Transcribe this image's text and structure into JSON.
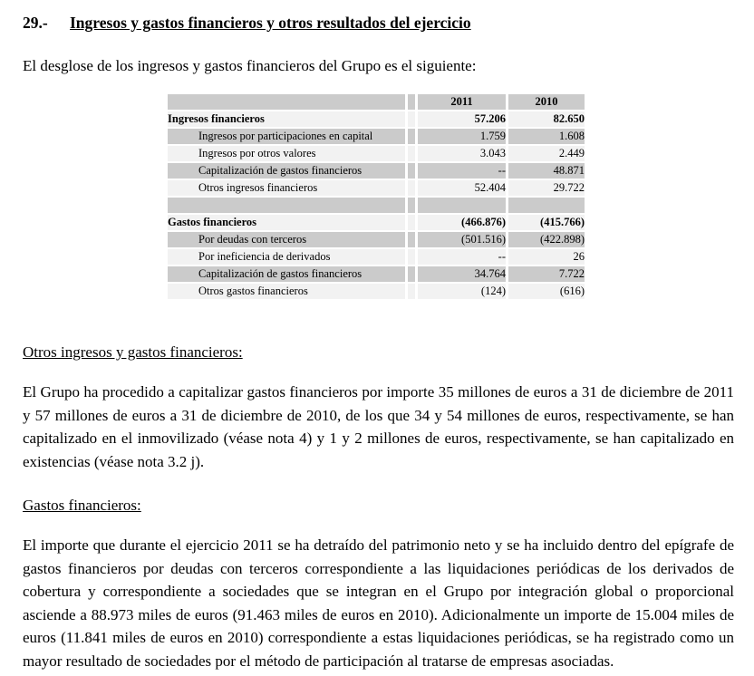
{
  "page": {
    "title_number": "29.-",
    "title": "Ingresos y gastos financieros y otros resultados del ejercicio",
    "intro": "El desglose de los ingresos y gastos financieros del Grupo es el siguiente:"
  },
  "colors": {
    "row_dark": "#cbcbcb",
    "row_light": "#f2f2f2",
    "text": "#000000",
    "background": "#ffffff"
  },
  "table": {
    "columns": [
      "",
      "2011",
      "2010"
    ],
    "rows": [
      {
        "label": "Ingresos financieros",
        "v2011": "57.206",
        "v2010": "82.650",
        "style": "total",
        "shade": "light"
      },
      {
        "label": "Ingresos por participaciones en capital",
        "v2011": "1.759",
        "v2010": "1.608",
        "style": "sub",
        "shade": "dark"
      },
      {
        "label": "Ingresos por otros valores",
        "v2011": "3.043",
        "v2010": "2.449",
        "style": "sub",
        "shade": "light"
      },
      {
        "label": "Capitalización de gastos financieros",
        "v2011": "--",
        "v2010": "48.871",
        "style": "sub",
        "shade": "dark"
      },
      {
        "label": "Otros ingresos financieros",
        "v2011": "52.404",
        "v2010": "29.722",
        "style": "sub",
        "shade": "light"
      },
      {
        "label": "",
        "v2011": "",
        "v2010": "",
        "style": "spacer",
        "shade": "dark"
      },
      {
        "label": "Gastos financieros",
        "v2011": "(466.876)",
        "v2010": "(415.766)",
        "style": "total",
        "shade": "light"
      },
      {
        "label": "Por deudas con terceros",
        "v2011": "(501.516)",
        "v2010": "(422.898)",
        "style": "sub",
        "shade": "dark"
      },
      {
        "label": "Por ineficiencia de derivados",
        "v2011": "--",
        "v2010": "26",
        "style": "sub",
        "shade": "light"
      },
      {
        "label": "Capitalización de gastos financieros",
        "v2011": "34.764",
        "v2010": "7.722",
        "style": "sub",
        "shade": "dark"
      },
      {
        "label": "Otros gastos financieros",
        "v2011": "(124)",
        "v2010": "(616)",
        "style": "sub",
        "shade": "light"
      }
    ]
  },
  "sections": [
    {
      "heading": "Otros ingresos y gastos financieros:",
      "body": "El Grupo ha procedido a capitalizar gastos financieros por importe 35 millones de euros a 31 de diciembre de 2011 y 57 millones de euros a 31 de diciembre de 2010, de los que 34 y 54 millones de euros, respectivamente, se han capitalizado en el inmovilizado (véase nota 4) y 1 y 2 millones de euros, respectivamente, se han capitalizado en existencias (véase nota 3.2 j)."
    },
    {
      "heading": "Gastos financieros:",
      "body": "El importe que durante el ejercicio 2011 se ha detraído del patrimonio neto y se ha incluido dentro del epígrafe de gastos financieros por deudas con terceros correspondiente a las liquidaciones periódicas de los derivados de cobertura y correspondiente a sociedades que se integran en el Grupo por integración global o proporcional asciende a 88.973 miles de euros (91.463 miles de euros en 2010). Adicionalmente un importe de 15.004 miles de euros (11.841 miles de euros en 2010) correspondiente a estas liquidaciones periódicas, se ha registrado como un mayor resultado de sociedades por el método de participación al tratarse de empresas asociadas."
    }
  ]
}
